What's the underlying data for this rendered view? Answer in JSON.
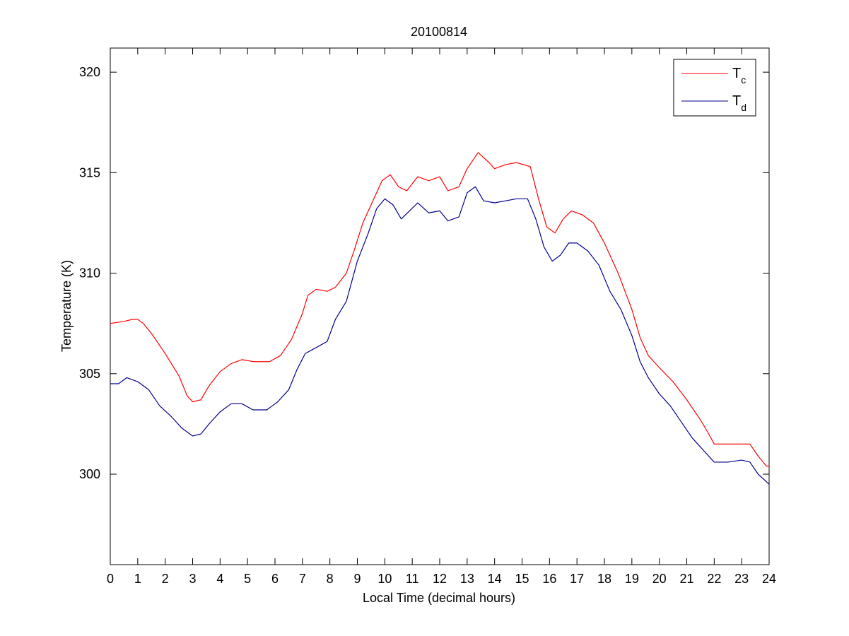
{
  "chart_data": {
    "type": "line",
    "title": "20100814",
    "xlabel": "Local Time (decimal hours)",
    "ylabel": "Temperature (K)",
    "xlim": [
      0,
      24
    ],
    "ylim": [
      295.5,
      321.2
    ],
    "xticks": [
      0,
      1,
      2,
      3,
      4,
      5,
      6,
      7,
      8,
      9,
      10,
      11,
      12,
      13,
      14,
      15,
      16,
      17,
      18,
      19,
      20,
      21,
      22,
      23,
      24
    ],
    "xtick_labels": [
      "0",
      "1",
      "2",
      "3",
      "4",
      "5",
      "6",
      "7",
      "8",
      "9",
      "10",
      "11",
      "12",
      "13",
      "14",
      "15",
      "16",
      "17",
      "18",
      "19",
      "20",
      "21",
      "22",
      "23",
      "24"
    ],
    "yticks": [
      300,
      305,
      310,
      315,
      320
    ],
    "ytick_labels": [
      "300",
      "305",
      "310",
      "315",
      "320"
    ],
    "grid": false,
    "legend_position": "top-right",
    "series": [
      {
        "name": "T",
        "name_subscript": "c",
        "color": "#ff0000",
        "points": [
          [
            0,
            307.5
          ],
          [
            0.5,
            307.6
          ],
          [
            0.8,
            307.7
          ],
          [
            1.0,
            307.7
          ],
          [
            1.2,
            307.5
          ],
          [
            1.5,
            307.0
          ],
          [
            2.0,
            306.0
          ],
          [
            2.5,
            304.9
          ],
          [
            2.8,
            303.9
          ],
          [
            3.0,
            303.6
          ],
          [
            3.3,
            303.7
          ],
          [
            3.6,
            304.4
          ],
          [
            4.0,
            305.1
          ],
          [
            4.4,
            305.5
          ],
          [
            4.8,
            305.7
          ],
          [
            5.2,
            305.6
          ],
          [
            5.8,
            305.6
          ],
          [
            6.2,
            305.9
          ],
          [
            6.6,
            306.7
          ],
          [
            7.0,
            308.0
          ],
          [
            7.2,
            308.9
          ],
          [
            7.5,
            309.2
          ],
          [
            7.9,
            309.1
          ],
          [
            8.2,
            309.3
          ],
          [
            8.6,
            310.0
          ],
          [
            8.9,
            311.2
          ],
          [
            9.2,
            312.5
          ],
          [
            9.6,
            313.7
          ],
          [
            9.9,
            314.6
          ],
          [
            10.2,
            314.9
          ],
          [
            10.5,
            314.3
          ],
          [
            10.8,
            314.1
          ],
          [
            11.2,
            314.8
          ],
          [
            11.6,
            314.6
          ],
          [
            12.0,
            314.8
          ],
          [
            12.3,
            314.1
          ],
          [
            12.7,
            314.3
          ],
          [
            13.0,
            315.2
          ],
          [
            13.4,
            316.0
          ],
          [
            13.8,
            315.5
          ],
          [
            14.0,
            315.2
          ],
          [
            14.4,
            315.4
          ],
          [
            14.8,
            315.5
          ],
          [
            15.3,
            315.3
          ],
          [
            15.6,
            313.7
          ],
          [
            15.9,
            312.3
          ],
          [
            16.2,
            312.0
          ],
          [
            16.5,
            312.7
          ],
          [
            16.8,
            313.1
          ],
          [
            17.2,
            312.9
          ],
          [
            17.6,
            312.5
          ],
          [
            18.0,
            311.5
          ],
          [
            18.5,
            310.0
          ],
          [
            19.0,
            308.2
          ],
          [
            19.3,
            306.8
          ],
          [
            19.6,
            305.9
          ],
          [
            20.0,
            305.3
          ],
          [
            20.5,
            304.6
          ],
          [
            21.0,
            303.7
          ],
          [
            21.5,
            302.7
          ],
          [
            21.8,
            302.0
          ],
          [
            22.0,
            301.5
          ],
          [
            22.5,
            301.5
          ],
          [
            23.0,
            301.5
          ],
          [
            23.3,
            301.5
          ],
          [
            23.6,
            300.9
          ],
          [
            23.9,
            300.4
          ],
          [
            24.0,
            300.4
          ]
        ]
      },
      {
        "name": "T",
        "name_subscript": "d",
        "color": "#00008b",
        "points": [
          [
            0,
            304.5
          ],
          [
            0.3,
            304.5
          ],
          [
            0.6,
            304.8
          ],
          [
            1.0,
            304.6
          ],
          [
            1.4,
            304.2
          ],
          [
            1.8,
            303.4
          ],
          [
            2.2,
            302.9
          ],
          [
            2.6,
            302.3
          ],
          [
            3.0,
            301.9
          ],
          [
            3.3,
            302.0
          ],
          [
            3.6,
            302.5
          ],
          [
            4.0,
            303.1
          ],
          [
            4.4,
            303.5
          ],
          [
            4.8,
            303.5
          ],
          [
            5.2,
            303.2
          ],
          [
            5.7,
            303.2
          ],
          [
            6.1,
            303.6
          ],
          [
            6.5,
            304.2
          ],
          [
            6.8,
            305.2
          ],
          [
            7.1,
            306.0
          ],
          [
            7.5,
            306.3
          ],
          [
            7.9,
            306.6
          ],
          [
            8.2,
            307.7
          ],
          [
            8.6,
            308.6
          ],
          [
            9.0,
            310.6
          ],
          [
            9.4,
            312.0
          ],
          [
            9.7,
            313.2
          ],
          [
            10.0,
            313.7
          ],
          [
            10.3,
            313.4
          ],
          [
            10.6,
            312.7
          ],
          [
            10.9,
            313.1
          ],
          [
            11.2,
            313.5
          ],
          [
            11.6,
            313.0
          ],
          [
            12.0,
            313.1
          ],
          [
            12.3,
            312.6
          ],
          [
            12.7,
            312.8
          ],
          [
            13.0,
            314.0
          ],
          [
            13.3,
            314.3
          ],
          [
            13.6,
            313.6
          ],
          [
            14.0,
            313.5
          ],
          [
            14.4,
            313.6
          ],
          [
            14.8,
            313.7
          ],
          [
            15.2,
            313.7
          ],
          [
            15.5,
            312.7
          ],
          [
            15.8,
            311.3
          ],
          [
            16.1,
            310.6
          ],
          [
            16.4,
            310.9
          ],
          [
            16.7,
            311.5
          ],
          [
            17.0,
            311.5
          ],
          [
            17.4,
            311.1
          ],
          [
            17.8,
            310.4
          ],
          [
            18.2,
            309.1
          ],
          [
            18.6,
            308.2
          ],
          [
            19.0,
            306.9
          ],
          [
            19.3,
            305.6
          ],
          [
            19.6,
            304.8
          ],
          [
            20.0,
            304.0
          ],
          [
            20.4,
            303.4
          ],
          [
            20.8,
            302.6
          ],
          [
            21.2,
            301.8
          ],
          [
            21.6,
            301.2
          ],
          [
            22.0,
            300.6
          ],
          [
            22.5,
            300.6
          ],
          [
            23.0,
            300.7
          ],
          [
            23.3,
            300.6
          ],
          [
            23.6,
            300.0
          ],
          [
            24.0,
            299.5
          ]
        ]
      }
    ]
  }
}
